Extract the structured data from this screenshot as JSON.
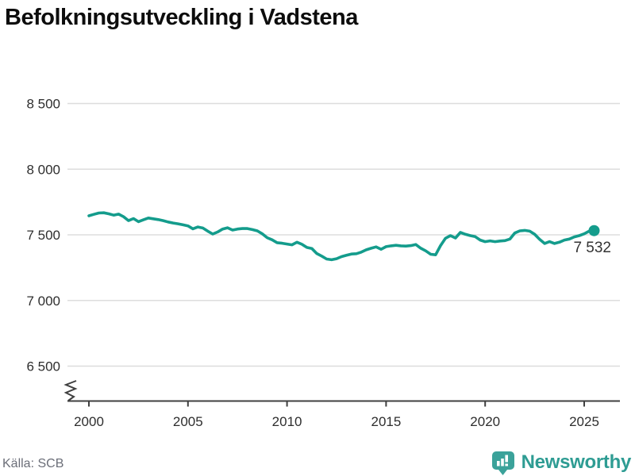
{
  "title": "Befolkningsutveckling i Vadstena",
  "source": "Källa: SCB",
  "brand": {
    "name": "Newsworthy",
    "logo_icon": "bar-chart-speech-bubble"
  },
  "colors": {
    "line": "#149c8c",
    "dot": "#149c8c",
    "gridline": "#dddddd",
    "axis": "#3f3f3f",
    "tick_label": "#2e2e2e",
    "end_label": "#333333",
    "title": "#0d0d0d",
    "source_text": "#6b6e78",
    "brand_teal": "#3ba29a",
    "brand_text": "#2e9c93"
  },
  "chart_data": {
    "type": "line",
    "title": "Befolkningsutveckling i Vadstena",
    "xlabel": "",
    "ylabel": "",
    "x_start": 2000,
    "x_step": 0.25,
    "values": [
      7645,
      7656,
      7666,
      7668,
      7660,
      7650,
      7658,
      7638,
      7608,
      7624,
      7600,
      7614,
      7628,
      7622,
      7616,
      7608,
      7598,
      7590,
      7584,
      7576,
      7568,
      7546,
      7560,
      7552,
      7528,
      7506,
      7522,
      7544,
      7554,
      7536,
      7544,
      7548,
      7548,
      7540,
      7530,
      7508,
      7478,
      7462,
      7440,
      7436,
      7430,
      7424,
      7444,
      7428,
      7404,
      7396,
      7358,
      7338,
      7316,
      7310,
      7318,
      7334,
      7344,
      7354,
      7356,
      7368,
      7386,
      7398,
      7408,
      7390,
      7410,
      7416,
      7420,
      7416,
      7414,
      7418,
      7426,
      7398,
      7378,
      7352,
      7348,
      7418,
      7474,
      7494,
      7476,
      7518,
      7504,
      7494,
      7486,
      7460,
      7448,
      7454,
      7448,
      7453,
      7456,
      7468,
      7514,
      7530,
      7534,
      7528,
      7504,
      7466,
      7434,
      7448,
      7434,
      7444,
      7460,
      7468,
      7484,
      7494,
      7508,
      7528,
      7532
    ],
    "last_value": 7532,
    "end_label": "7 532",
    "y_ticks": [
      {
        "value": 8500,
        "label": "8 500"
      },
      {
        "value": 8000,
        "label": "8 000"
      },
      {
        "value": 7500,
        "label": "7 500"
      },
      {
        "value": 7000,
        "label": "7 000"
      },
      {
        "value": 6500,
        "label": "6 500"
      }
    ],
    "x_ticks": [
      {
        "value": 2000,
        "label": "2000"
      },
      {
        "value": 2005,
        "label": "2005"
      },
      {
        "value": 2010,
        "label": "2010"
      },
      {
        "value": 2015,
        "label": "2015"
      },
      {
        "value": 2020,
        "label": "2020"
      },
      {
        "value": 2025,
        "label": "2025"
      }
    ],
    "axis_break": true,
    "grid": true,
    "legend": "none"
  }
}
